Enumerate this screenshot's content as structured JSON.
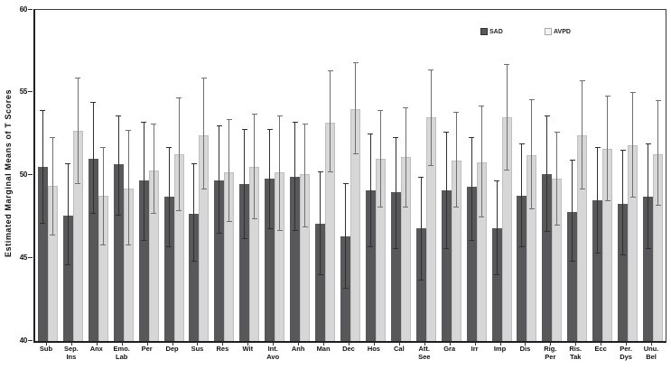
{
  "chart_data": {
    "type": "bar",
    "title": "",
    "ylabel": "Estimated Marginal Means of T Scores",
    "xlabel": "",
    "ylim": [
      40,
      60
    ],
    "yticks": [
      40,
      45,
      50,
      55,
      60
    ],
    "grid": false,
    "legend_position": "top-inside",
    "axis_color": "#2e2e2e",
    "categories": [
      [
        "Sub"
      ],
      [
        "Sep.",
        "Ins"
      ],
      [
        "Anx"
      ],
      [
        "Emo.",
        "Lab"
      ],
      [
        "Per"
      ],
      [
        "Dep"
      ],
      [
        "Sus"
      ],
      [
        "Res"
      ],
      [
        "Wit"
      ],
      [
        "Int.",
        "Avo"
      ],
      [
        "Anh"
      ],
      [
        "Man"
      ],
      [
        "Dec"
      ],
      [
        "Hos"
      ],
      [
        "Cal"
      ],
      [
        "Att.",
        "See"
      ],
      [
        "Gra"
      ],
      [
        "Irr"
      ],
      [
        "Imp"
      ],
      [
        "Dis"
      ],
      [
        "Rig.",
        "Per"
      ],
      [
        "Ris.",
        "Tak"
      ],
      [
        "Ecc"
      ],
      [
        "Per.",
        "Dys"
      ],
      [
        "Unu.",
        "Bel"
      ]
    ],
    "series": [
      {
        "name": "SAD",
        "color": "#58585a",
        "err_color": "#2f2f2f",
        "values": [
          50.5,
          47.6,
          51.0,
          50.7,
          49.7,
          48.7,
          47.7,
          49.7,
          49.5,
          49.8,
          49.9,
          47.1,
          46.3,
          49.1,
          49.0,
          46.8,
          49.1,
          49.3,
          46.8,
          48.8,
          50.1,
          47.8,
          48.5,
          48.3,
          48.7
        ],
        "err_low": [
          47.1,
          44.6,
          47.7,
          47.6,
          46.1,
          45.7,
          44.8,
          46.5,
          46.2,
          46.8,
          46.7,
          44.0,
          43.2,
          45.7,
          45.6,
          43.7,
          45.6,
          46.1,
          44.0,
          45.7,
          46.6,
          44.8,
          45.3,
          45.2,
          45.6
        ],
        "err_high": [
          53.9,
          50.7,
          54.4,
          53.6,
          53.2,
          51.7,
          50.7,
          53.0,
          52.8,
          52.8,
          53.2,
          50.2,
          49.5,
          52.5,
          52.3,
          49.9,
          52.6,
          52.3,
          49.7,
          51.9,
          53.6,
          50.9,
          51.7,
          51.5,
          51.9
        ]
      },
      {
        "name": "AVPD",
        "color": "#d7d7d7",
        "err_color": "#6f6f6f",
        "values": [
          49.4,
          52.7,
          48.8,
          49.2,
          50.3,
          51.3,
          52.4,
          50.2,
          50.5,
          50.2,
          50.1,
          53.2,
          54.0,
          51.0,
          51.1,
          53.5,
          50.9,
          50.8,
          53.5,
          51.2,
          49.8,
          52.4,
          51.6,
          51.8,
          51.3
        ],
        "err_low": [
          46.4,
          49.5,
          45.8,
          45.8,
          47.7,
          47.9,
          49.2,
          47.2,
          47.4,
          46.7,
          46.9,
          50.2,
          51.3,
          48.1,
          48.1,
          50.6,
          48.1,
          47.5,
          50.3,
          48.0,
          47.0,
          49.2,
          48.5,
          48.7,
          48.2
        ],
        "err_high": [
          52.3,
          55.9,
          51.7,
          52.7,
          53.1,
          54.7,
          55.9,
          53.4,
          53.7,
          53.6,
          53.1,
          56.3,
          56.8,
          53.9,
          54.1,
          56.4,
          53.8,
          54.2,
          56.7,
          54.6,
          52.6,
          55.7,
          54.8,
          55.0,
          54.5
        ]
      }
    ]
  }
}
